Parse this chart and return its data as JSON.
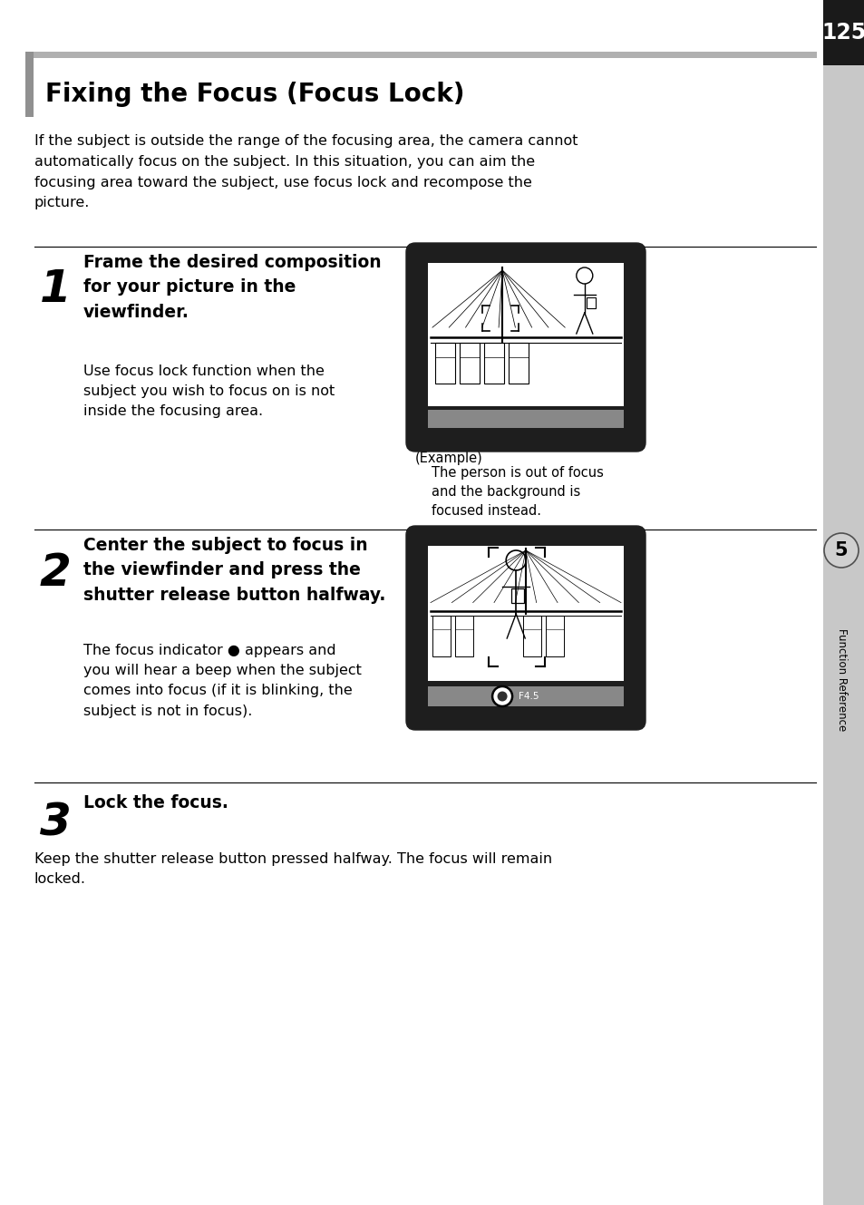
{
  "page_number": "125",
  "title": "Fixing the Focus (Focus Lock)",
  "intro_text": "If the subject is outside the range of the focusing area, the camera cannot\nautomatically focus on the subject. In this situation, you can aim the\nfocusing area toward the subject, use focus lock and recompose the\npicture.",
  "step1_num": "1",
  "step1_heading": "Frame the desired composition\nfor your picture in the\nviewfinder.",
  "step1_body": "Use focus lock function when the\nsubject you wish to focus on is not\ninside the focusing area.",
  "step1_caption_line1": "(Example)",
  "step1_caption_line2": "    The person is out of focus\n    and the background is\n    focused instead.",
  "step2_num": "2",
  "step2_heading": "Center the subject to focus in\nthe viewfinder and press the\nshutter release button halfway.",
  "step2_body": "The focus indicator ● appears and\nyou will hear a beep when the subject\ncomes into focus (if it is blinking, the\nsubject is not in focus).",
  "step3_num": "3",
  "step3_heading": "Lock the focus.",
  "step3_body": "Keep the shutter release button pressed halfway. The focus will remain\nlocked.",
  "side_label": "Function Reference",
  "side_number": "5",
  "bg_color": "#ffffff",
  "sidebar_color": "#c8c8c8",
  "page_num_bg": "#1a1a1a",
  "title_top_bar_color": "#b0b0b0",
  "title_left_bar_color": "#909090"
}
